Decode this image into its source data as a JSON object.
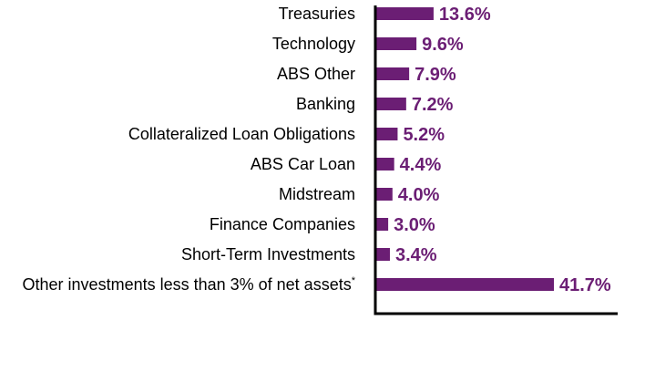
{
  "chart_data": {
    "type": "bar",
    "orientation": "horizontal",
    "categories": [
      "Treasuries",
      "Technology",
      "ABS Other",
      "Banking",
      "Collateralized Loan Obligations",
      "ABS Car Loan",
      "Midstream",
      "Finance Companies",
      "Short-Term Investments",
      "Other investments less than 3% of net assets"
    ],
    "category_footnote_marks": [
      "",
      "",
      "",
      "",
      "",
      "",
      "",
      "",
      "",
      "*"
    ],
    "values": [
      13.6,
      9.6,
      7.9,
      7.2,
      5.2,
      4.4,
      4.0,
      3.0,
      3.4,
      41.7
    ],
    "value_labels": [
      "13.6%",
      "9.6%",
      "7.9%",
      "7.2%",
      "5.2%",
      "4.4%",
      "4.0%",
      "3.0%",
      "3.4%",
      "41.7%"
    ],
    "xlim": [
      0,
      50
    ],
    "grid": false,
    "bar_color": "#6b1e74",
    "label_color": "#6b1e74",
    "axis_color": "#000000"
  }
}
